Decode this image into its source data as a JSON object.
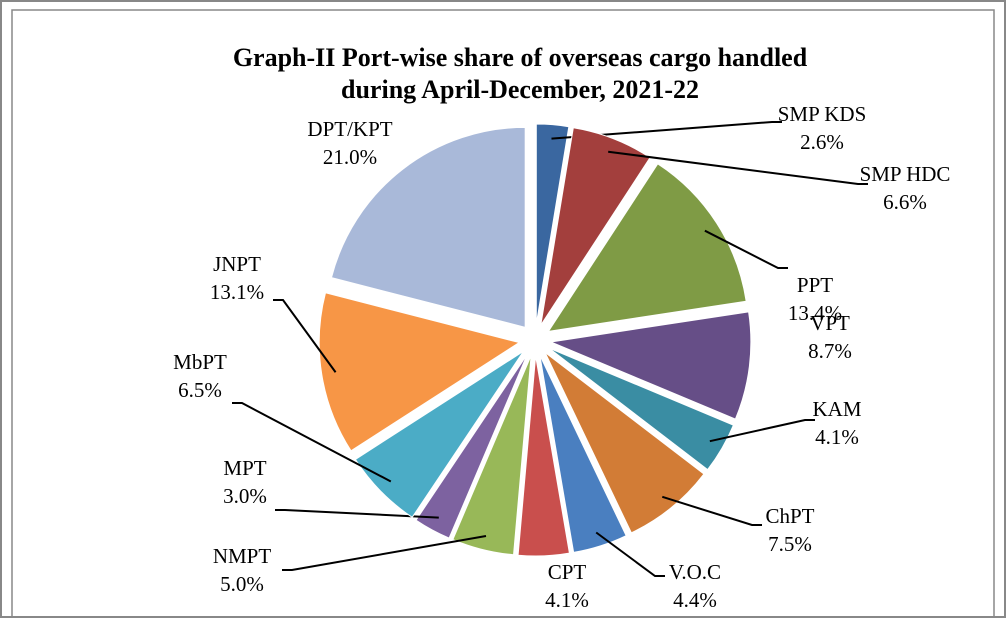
{
  "chart_data": {
    "type": "pie",
    "title": [
      "Graph-II Port-wise share of  overseas cargo handled",
      "during April-December, 2021-22"
    ],
    "categories": [
      "SMP KDS",
      "SMP HDC",
      "PPT",
      "VPT",
      "KAM",
      "ChPT",
      "V.O.C",
      "CPT",
      "NMPT",
      "MPT",
      "MbPT",
      "JNPT",
      "DPT/KPT"
    ],
    "values": [
      2.6,
      6.6,
      13.4,
      8.7,
      4.1,
      7.5,
      4.4,
      4.1,
      5.0,
      3.0,
      6.5,
      13.1,
      21.0
    ],
    "value_labels": [
      "2.6%",
      "6.6%",
      "13.4%",
      "8.7%",
      "4.1%",
      "7.5%",
      "4.4%",
      "4.1%",
      "5.0%",
      "3.0%",
      "6.5%",
      "13.1%",
      "21.0%"
    ],
    "colors": [
      "#3a67a0",
      "#a33f3d",
      "#7f9b45",
      "#664e87",
      "#3a8da3",
      "#d27c36",
      "#4a7fc0",
      "#c94f4d",
      "#98b858",
      "#7d62a0",
      "#4bacc6",
      "#f79646",
      "#a9b9d9"
    ]
  }
}
